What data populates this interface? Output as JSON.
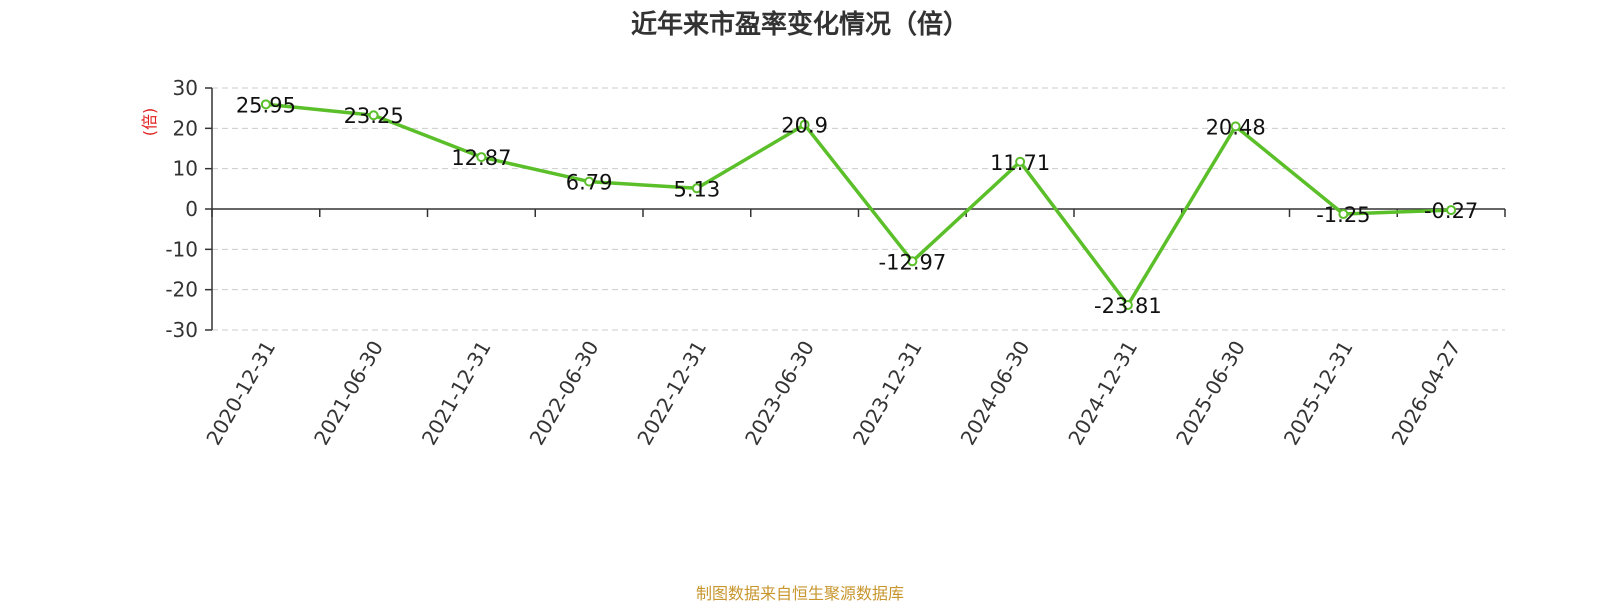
{
  "chart_data": {
    "type": "line",
    "title": "近年来市盈率变化情况（倍）",
    "ylabel": "(倍)",
    "xlabel": "",
    "categories": [
      "2020-12-31",
      "2021-06-30",
      "2021-12-31",
      "2022-06-30",
      "2022-12-31",
      "2023-06-30",
      "2023-12-31",
      "2024-06-30",
      "2024-12-31",
      "2025-06-30",
      "2025-12-31",
      "2026-04-27"
    ],
    "series": [
      {
        "values": [
          25.95,
          23.25,
          12.87,
          6.79,
          5.13,
          20.9,
          -12.97,
          11.71,
          -23.81,
          20.48,
          -1.25,
          -0.27
        ]
      }
    ],
    "data_labels": [
      "25.95",
      "23.25",
      "12.87",
      "6.79",
      "5.13",
      "20.9",
      "-12.97",
      "11.71",
      "-23.81",
      "20.48",
      "-1.25",
      "-0.27"
    ],
    "ylim": [
      -30,
      30
    ],
    "yticks": [
      30,
      20,
      10,
      0,
      -10,
      -20,
      -30
    ],
    "grid": true,
    "colors": {
      "line": "#5bbf2a",
      "ylabel": "#e02020",
      "source": "#c8962e"
    }
  },
  "source_note": "制图数据来自恒生聚源数据库"
}
